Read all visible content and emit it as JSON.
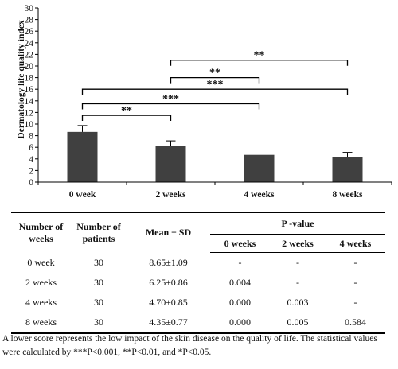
{
  "chart_data": {
    "type": "bar",
    "ylabel": "Dermatology life quality index",
    "categories": [
      "0 week",
      "2 weeks",
      "4 weeks",
      "8 weeks"
    ],
    "values": [
      8.65,
      6.25,
      4.7,
      4.35
    ],
    "errors": [
      1.09,
      0.86,
      0.85,
      0.77
    ],
    "ylim": [
      0,
      30
    ],
    "yticks": [
      0,
      2,
      4,
      6,
      8,
      10,
      12,
      14,
      16,
      18,
      20,
      22,
      24,
      26,
      28,
      30
    ],
    "bar_color": "#404040",
    "significance": [
      {
        "from": 0,
        "to": 1,
        "label": "**",
        "y": 11.5
      },
      {
        "from": 0,
        "to": 2,
        "label": "***",
        "y": 13.5
      },
      {
        "from": 0,
        "to": 3,
        "label": "***",
        "y": 16.0
      },
      {
        "from": 1,
        "to": 2,
        "label": "**",
        "y": 18.0
      },
      {
        "from": 1,
        "to": 3,
        "label": "**",
        "y": 21.0
      }
    ]
  },
  "table": {
    "headers": {
      "weeks": "Number of weeks",
      "patients": "Number of patients",
      "mean": "Mean ± SD",
      "pvalue": "P -value",
      "sub": [
        "0 weeks",
        "2 weeks",
        "4 weeks"
      ]
    },
    "rows": [
      {
        "weeks": "0  week",
        "patients": "30",
        "mean": "8.65±1.09",
        "p0": "-",
        "p2": "-",
        "p4": "-"
      },
      {
        "weeks": "2 weeks",
        "patients": "30",
        "mean": "6.25±0.86",
        "p0": "0.004",
        "p2": "-",
        "p4": "-"
      },
      {
        "weeks": "4 weeks",
        "patients": "30",
        "mean": "4.70±0.85",
        "p0": "0.000",
        "p2": "0.003",
        "p4": "-"
      },
      {
        "weeks": "8 weeks",
        "patients": "30",
        "mean": "4.35±0.77",
        "p0": "0.000",
        "p2": "0.005",
        "p4": "0.584"
      }
    ]
  },
  "caption": "A lower score represents the low impact of the skin disease on the quality of life. The statistical values were calculated by ***P<0.001, **P<0.01, and *P<0.05."
}
